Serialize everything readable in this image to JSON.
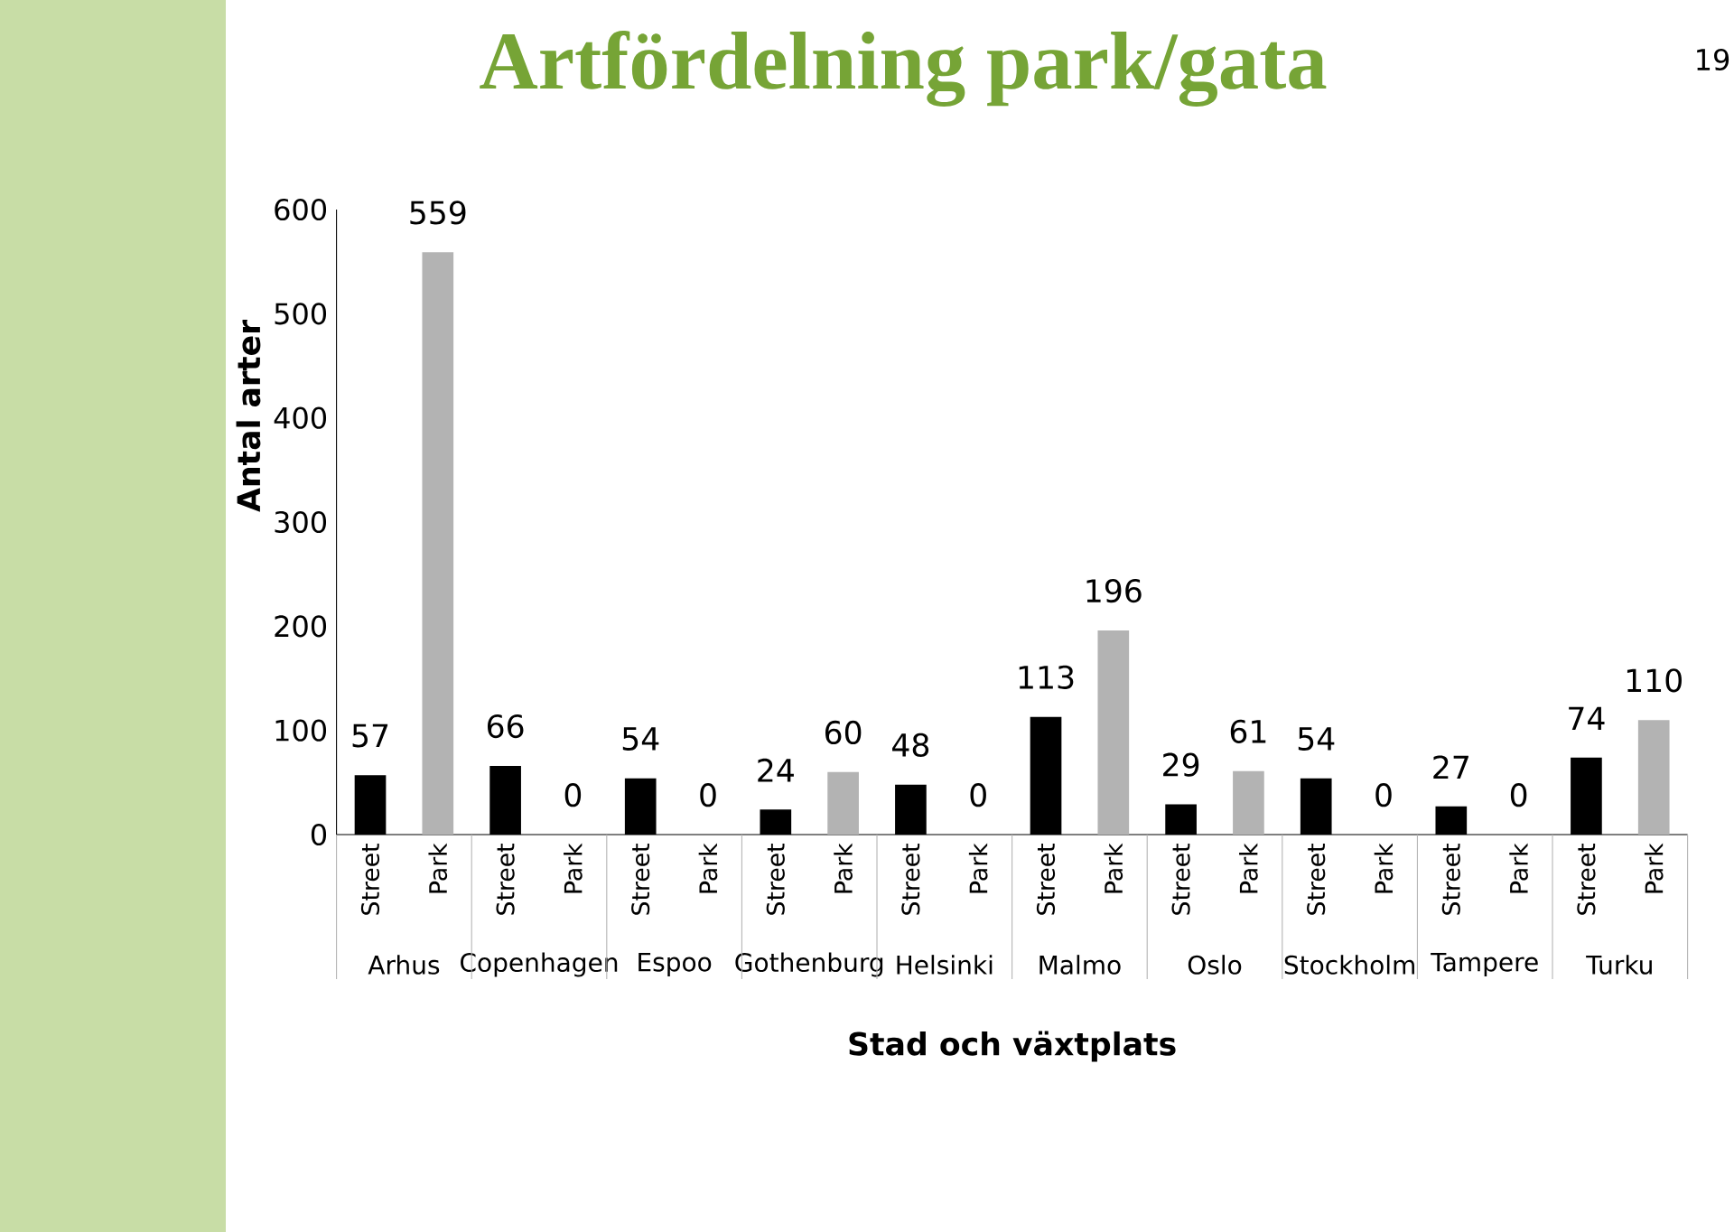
{
  "chart_data": {
    "type": "bar",
    "title": "Artfördelning park/gata",
    "xlabel": "Stad och växtplats",
    "ylabel": "Antal arter",
    "categories": [
      "Street",
      "Park",
      "Street",
      "Park",
      "Street",
      "Park",
      "Street",
      "Park",
      "Street",
      "Park",
      "Street",
      "Park",
      "Street",
      "Park",
      "Street",
      "Park",
      "Street",
      "Park",
      "Street",
      "Park"
    ],
    "values": [
      57,
      559,
      66,
      0,
      54,
      0,
      24,
      60,
      48,
      0,
      113,
      196,
      29,
      61,
      54,
      0,
      27,
      0,
      74,
      110
    ],
    "colors": [
      "#000000",
      "#b3b3b3",
      "#000000",
      "#b3b3b3",
      "#000000",
      "#b3b3b3",
      "#000000",
      "#b3b3b3",
      "#000000",
      "#b3b3b3",
      "#000000",
      "#b3b3b3",
      "#000000",
      "#b3b3b3",
      "#000000",
      "#b3b3b3",
      "#000000",
      "#b3b3b3",
      "#000000",
      "#b3b3b3"
    ],
    "ylim": [
      0,
      600
    ],
    "yticks": [
      0,
      100,
      200,
      300,
      400,
      500,
      600
    ],
    "data_labels": true,
    "grid": false,
    "annotations": [
      "Arhus",
      "Copenhagen",
      "Espoo",
      "Gothenburg",
      "Helsinki",
      "Malmo",
      "Oslo",
      "Stockholm",
      "Tampere",
      "Turku",
      "19"
    ]
  }
}
